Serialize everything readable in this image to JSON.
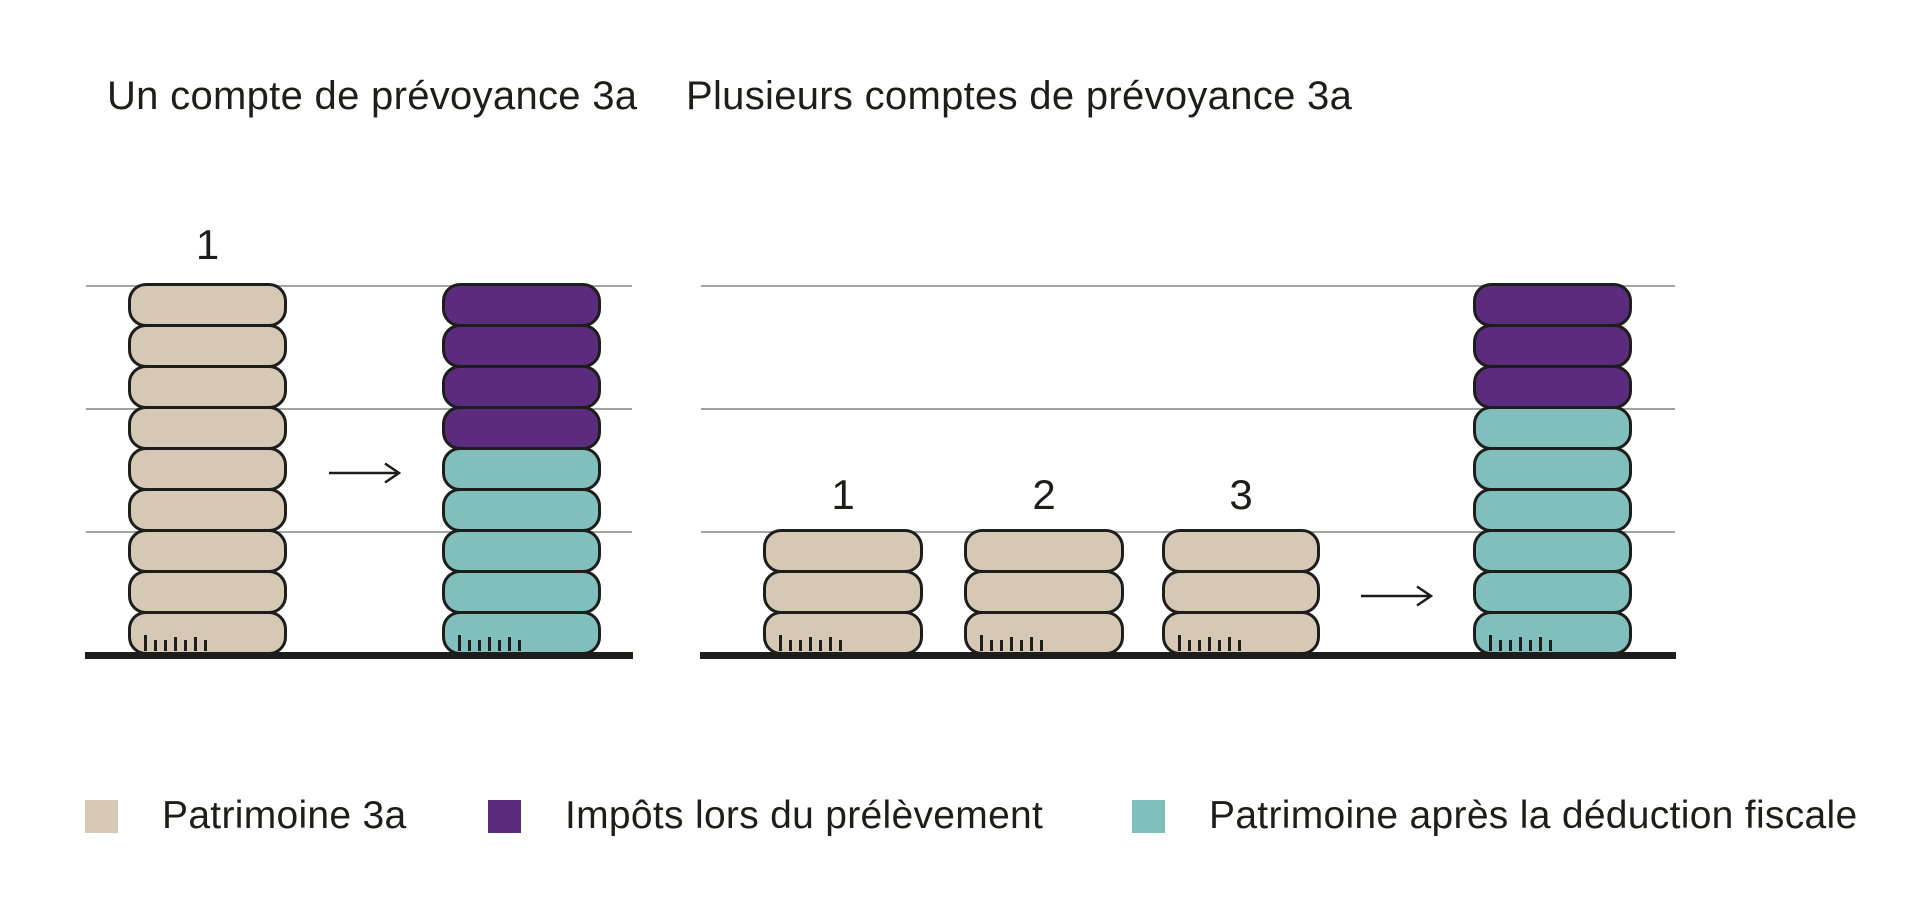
{
  "page": {
    "background": "#ffffff"
  },
  "colors": {
    "beige": "#d5c9b6",
    "purple": "#5b2b7d",
    "teal": "#80bfbc",
    "outline": "#1d1d1b",
    "gridline": "#a3a3a2",
    "baseline": "#1d1d1b",
    "text": "#1d1d1b"
  },
  "panels": [
    {
      "title": "Un compte de prévoyance 3a",
      "stacks": [
        {
          "label": "1",
          "segments": [
            {
              "color": "beige",
              "coins": 9
            }
          ]
        },
        {
          "label": "",
          "segments": [
            {
              "color": "purple",
              "coins": 4
            },
            {
              "color": "teal",
              "coins": 5
            }
          ]
        }
      ]
    },
    {
      "title": "Plusieurs comptes de prévoyance 3a",
      "stacks": [
        {
          "label": "1",
          "segments": [
            {
              "color": "beige",
              "coins": 3
            }
          ]
        },
        {
          "label": "2",
          "segments": [
            {
              "color": "beige",
              "coins": 3
            }
          ]
        },
        {
          "label": "3",
          "segments": [
            {
              "color": "beige",
              "coins": 3
            }
          ]
        },
        {
          "label": "",
          "segments": [
            {
              "color": "purple",
              "coins": 3
            },
            {
              "color": "teal",
              "coins": 6
            }
          ]
        }
      ]
    }
  ],
  "legend": {
    "items": [
      {
        "label": "Patrimoine 3a",
        "color": "beige"
      },
      {
        "label": "Impôts lors du prélèvement",
        "color": "purple"
      },
      {
        "label": "Patrimoine après la déduction fiscale",
        "color": "teal"
      }
    ]
  },
  "chart_data": [
    {
      "type": "bar",
      "title": "Un compte de prévoyance 3a",
      "note": "pictograph of stacked coins; values = coin counts",
      "categories": [
        "1",
        ""
      ],
      "series": [
        {
          "name": "Patrimoine 3a",
          "values": [
            9,
            0
          ]
        },
        {
          "name": "Impôts lors du prélèvement",
          "values": [
            0,
            4
          ]
        },
        {
          "name": "Patrimoine après la déduction fiscale",
          "values": [
            0,
            5
          ]
        }
      ],
      "ylim": [
        0,
        9
      ],
      "gridlines_at": [
        3,
        6,
        9
      ],
      "legend_position": "bottom"
    },
    {
      "type": "bar",
      "title": "Plusieurs comptes de prévoyance 3a",
      "note": "pictograph of stacked coins; values = coin counts",
      "categories": [
        "1",
        "2",
        "3",
        ""
      ],
      "series": [
        {
          "name": "Patrimoine 3a",
          "values": [
            3,
            3,
            3,
            0
          ]
        },
        {
          "name": "Impôts lors du prélèvement",
          "values": [
            0,
            0,
            0,
            3
          ]
        },
        {
          "name": "Patrimoine après la déduction fiscale",
          "values": [
            0,
            0,
            0,
            6
          ]
        }
      ],
      "ylim": [
        0,
        9
      ],
      "gridlines_at": [
        3,
        6,
        9
      ],
      "legend_position": "bottom"
    }
  ]
}
